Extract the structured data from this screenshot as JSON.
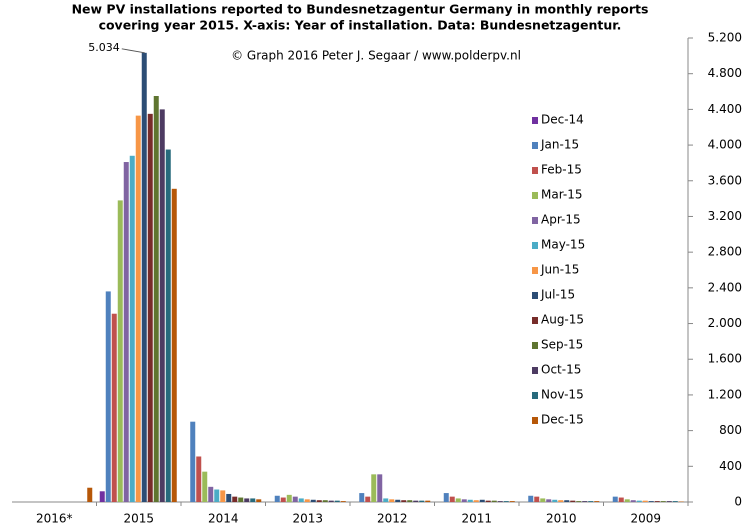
{
  "chart_data": {
    "type": "bar",
    "title": [
      "New PV installations reported to Bundesnetzagentur Germany in monthly reports",
      "covering year 2015. X-axis: Year of installation. Data: Bundesnetzagentur."
    ],
    "credit": "© Graph 2016 Peter J. Segaar / www.polderpv.nl",
    "categories": [
      "2016*",
      "2015",
      "2014",
      "2013",
      "2012",
      "2011",
      "2010",
      "2009"
    ],
    "ylim": [
      0,
      5200
    ],
    "yticks": [
      0,
      400,
      800,
      {
        "value": 1200,
        "label": "1.200"
      },
      {
        "value": 1600,
        "label": "1.600"
      },
      {
        "value": 2000,
        "label": "2.000"
      },
      {
        "value": 2400,
        "label": "2.400"
      },
      {
        "value": 2800,
        "label": "2.800"
      },
      {
        "value": 3200,
        "label": "3.200"
      },
      {
        "value": 3600,
        "label": "3.600"
      },
      {
        "value": 4000,
        "label": "4.000"
      },
      {
        "value": 4400,
        "label": "4.400"
      },
      {
        "value": 4800,
        "label": "4.800"
      },
      {
        "value": 5200,
        "label": "5.200"
      }
    ],
    "series": [
      {
        "name": "Dec-14",
        "color": "#7030a0",
        "values": [
          0,
          120,
          0,
          0,
          0,
          0,
          0,
          0
        ]
      },
      {
        "name": "Jan-15",
        "color": "#4f81bd",
        "values": [
          0,
          2360,
          900,
          70,
          100,
          100,
          70,
          60
        ]
      },
      {
        "name": "Feb-15",
        "color": "#c0504d",
        "values": [
          0,
          2110,
          510,
          50,
          60,
          60,
          60,
          50
        ]
      },
      {
        "name": "Mar-15",
        "color": "#9bbb59",
        "values": [
          0,
          3380,
          340,
          80,
          310,
          40,
          40,
          30
        ]
      },
      {
        "name": "Apr-15",
        "color": "#8064a2",
        "values": [
          0,
          3810,
          170,
          60,
          310,
          30,
          30,
          20
        ]
      },
      {
        "name": "May-15",
        "color": "#4bacc6",
        "values": [
          0,
          3880,
          140,
          40,
          40,
          25,
          25,
          15
        ]
      },
      {
        "name": "Jun-15",
        "color": "#f79646",
        "values": [
          0,
          4330,
          130,
          30,
          30,
          20,
          20,
          15
        ]
      },
      {
        "name": "Jul-15",
        "color": "#2c4d75",
        "values": [
          0,
          5034,
          90,
          25,
          25,
          25,
          20,
          10
        ],
        "value_labels": [
          null,
          "5.034",
          null,
          null,
          null,
          null,
          null,
          null
        ]
      },
      {
        "name": "Aug-15",
        "color": "#772c2a",
        "values": [
          0,
          4350,
          60,
          20,
          20,
          15,
          15,
          10
        ]
      },
      {
        "name": "Sep-15",
        "color": "#5f7530",
        "values": [
          0,
          4550,
          50,
          20,
          20,
          15,
          10,
          10
        ]
      },
      {
        "name": "Oct-15",
        "color": "#4d3b62",
        "values": [
          0,
          4400,
          40,
          15,
          15,
          10,
          10,
          10
        ]
      },
      {
        "name": "Nov-15",
        "color": "#276a7c",
        "values": [
          0,
          3950,
          40,
          15,
          15,
          10,
          10,
          10
        ]
      },
      {
        "name": "Dec-15",
        "color": "#b65708",
        "values": [
          160,
          3510,
          30,
          10,
          15,
          10,
          10,
          5
        ]
      }
    ]
  }
}
